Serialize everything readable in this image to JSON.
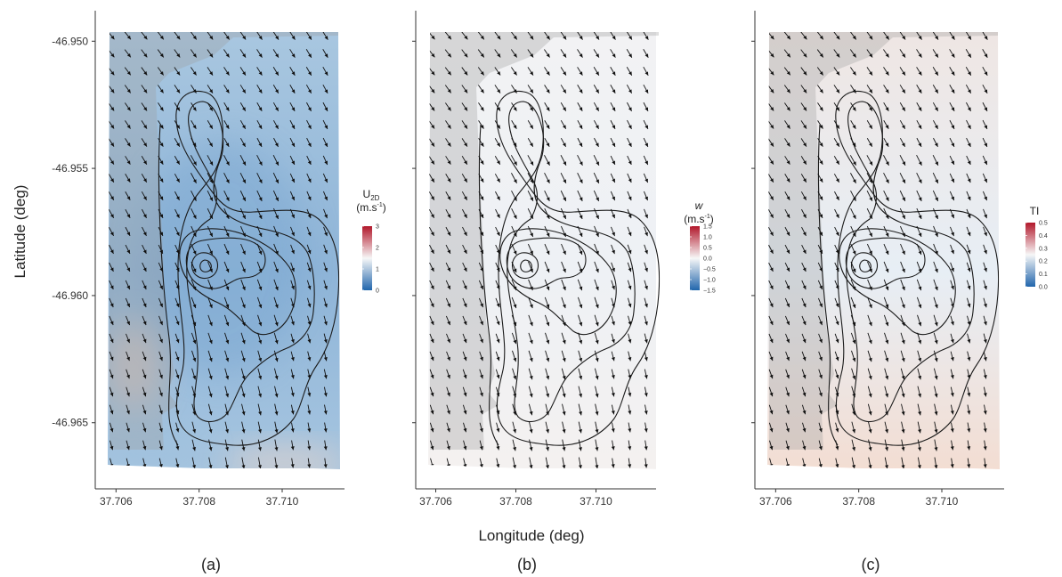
{
  "figure": {
    "xlabel": "Longitude (deg)",
    "ylabel": "Latitude (deg)"
  },
  "colors": {
    "low": "#2166ac",
    "mid": "#f7f7f7",
    "high": "#b2182b",
    "mask": "#9a9a9a",
    "contour": "#1a1a1a",
    "arrow": "#111111"
  },
  "chart_data": [
    {
      "type": "heatmap",
      "panel_label": "(a)",
      "legend": {
        "title": "U",
        "subscript": "2D",
        "unit": "(m.s",
        "unit_sup": "-1",
        "unit_close": ")",
        "ticks": [
          "3",
          "2",
          "1",
          "0"
        ],
        "range": [
          0,
          3
        ]
      },
      "x_ticks": [
        "37.706",
        "37.708",
        "37.710"
      ],
      "x_tick_values": [
        37.706,
        37.708,
        37.71
      ],
      "y_ticks": [
        "-46.950",
        "-46.955",
        "-46.960",
        "-46.965"
      ],
      "y_tick_values": [
        -46.95,
        -46.955,
        -46.96,
        -46.965
      ],
      "xlim": [
        37.7055,
        37.7115
      ],
      "ylim": [
        -46.9676,
        -46.9488
      ],
      "field": "U2D wind speed with wind vectors and terrain contours"
    },
    {
      "type": "heatmap",
      "panel_label": "(b)",
      "legend": {
        "title": "w",
        "subscript": "",
        "unit": "(m.s",
        "unit_sup": "-1",
        "unit_close": ")",
        "ticks": [
          "1.5",
          "1.0",
          "0.5",
          "0.0",
          "−0.5",
          "−1.0",
          "−1.5"
        ],
        "range": [
          -1.5,
          1.5
        ]
      },
      "x_ticks": [
        "37.706",
        "37.708",
        "37.710"
      ],
      "x_tick_values": [
        37.706,
        37.708,
        37.71
      ],
      "y_ticks": [],
      "y_tick_values": [
        -46.95,
        -46.955,
        -46.96,
        -46.965
      ],
      "xlim": [
        37.7055,
        37.7115
      ],
      "ylim": [
        -46.9676,
        -46.9488
      ],
      "field": "vertical velocity w"
    },
    {
      "type": "heatmap",
      "panel_label": "(c)",
      "legend": {
        "title": "TI",
        "subscript": "",
        "unit": "",
        "unit_sup": "",
        "unit_close": "",
        "ticks": [
          "0.5",
          "0.4",
          "0.3",
          "0.2",
          "0.1",
          "0.0"
        ],
        "range": [
          0,
          0.5
        ]
      },
      "x_ticks": [
        "37.706",
        "37.708",
        "37.710"
      ],
      "x_tick_values": [
        37.706,
        37.708,
        37.71
      ],
      "y_ticks": [],
      "y_tick_values": [
        -46.95,
        -46.955,
        -46.96,
        -46.965
      ],
      "xlim": [
        37.7055,
        37.7115
      ],
      "ylim": [
        -46.9676,
        -46.9488
      ],
      "field": "turbulence intensity TI"
    }
  ]
}
